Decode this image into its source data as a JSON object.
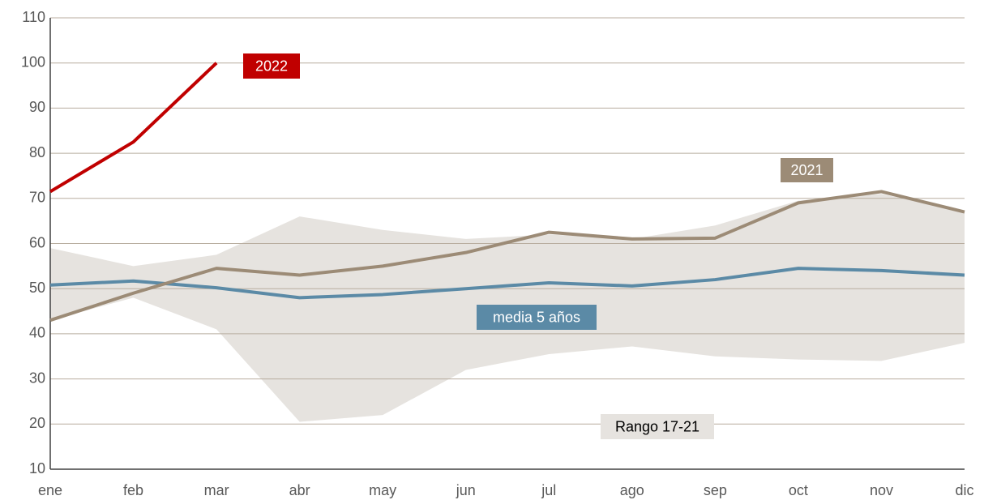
{
  "chart_data": {
    "type": "line",
    "categories": [
      "ene",
      "feb",
      "mar",
      "abr",
      "may",
      "jun",
      "jul",
      "ago",
      "sep",
      "oct",
      "nov",
      "dic"
    ],
    "series": [
      {
        "name": "2022",
        "color": "#c00000",
        "values": [
          71.5,
          82.5,
          100,
          null,
          null,
          null,
          null,
          null,
          null,
          null,
          null,
          null
        ]
      },
      {
        "name": "2021",
        "color": "#9c8b76",
        "values": [
          43,
          49,
          54.5,
          53,
          55,
          58,
          62.5,
          61,
          61.2,
          69,
          71.5,
          67
        ]
      },
      {
        "name": "media 5 años",
        "color": "#5b8aa6",
        "values": [
          50.8,
          51.7,
          50.2,
          48,
          48.7,
          50,
          51.3,
          50.6,
          52,
          54.5,
          54,
          53
        ]
      }
    ],
    "range": {
      "name": "Rango 17-21",
      "color": "#e6e3df",
      "upper": [
        59,
        55,
        57.5,
        66,
        63,
        61,
        62,
        61,
        64,
        69.5,
        71,
        67
      ],
      "lower": [
        43,
        48,
        41,
        20.5,
        22,
        32,
        35.5,
        37.2,
        35,
        34.3,
        34,
        38
      ]
    },
    "ylim": [
      10,
      110
    ],
    "yticks": [
      10,
      20,
      30,
      40,
      50,
      60,
      70,
      80,
      90,
      100,
      110
    ],
    "grid": true
  }
}
